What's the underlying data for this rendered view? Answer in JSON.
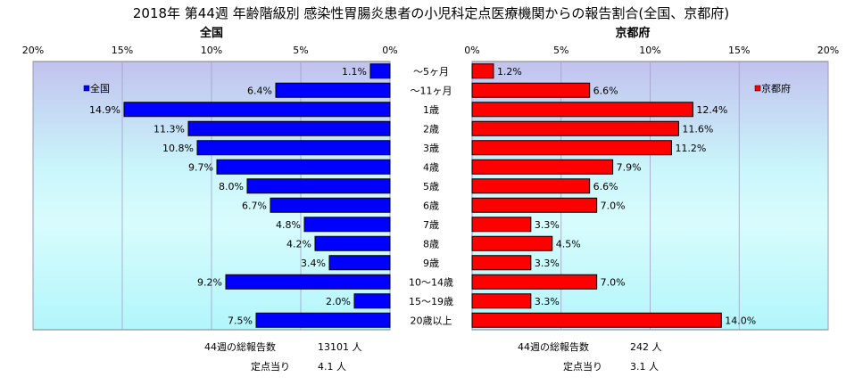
{
  "title": "2018年 第44週 年齢階級別 感染性胃腸炎患者の小児科定点医療機関からの報告割合(全国、京都府)",
  "categories": [
    "～5ヶ月",
    "～11ヶ月",
    "1歳",
    "2歳",
    "3歳",
    "4歳",
    "5歳",
    "6歳",
    "7歳",
    "8歳",
    "9歳",
    "10～14歳",
    "15～19歳",
    "20歳以上"
  ],
  "chart_data": [
    {
      "type": "bar",
      "orientation": "horizontal",
      "direction": "leftward",
      "title": "全国",
      "xlim": [
        0,
        20
      ],
      "ticks": [
        "20%",
        "15%",
        "10%",
        "5%",
        "0%"
      ],
      "tick_values": [
        20,
        15,
        10,
        5,
        0
      ],
      "series": [
        {
          "name": "全国",
          "color": "#0000ff",
          "values": [
            1.1,
            6.4,
            14.9,
            11.3,
            10.8,
            9.7,
            8.0,
            6.7,
            4.8,
            4.2,
            3.4,
            9.2,
            2.0,
            7.5
          ],
          "labels": [
            "1.1%",
            "6.4%",
            "14.9%",
            "11.3%",
            "10.8%",
            "9.7%",
            "8.0%",
            "6.7%",
            "4.8%",
            "4.2%",
            "3.4%",
            "9.2%",
            "2.0%",
            "7.5%"
          ]
        }
      ],
      "legend": "top-left",
      "grid": true
    },
    {
      "type": "bar",
      "orientation": "horizontal",
      "direction": "rightward",
      "title": "京都府",
      "xlim": [
        0,
        20
      ],
      "ticks": [
        "0%",
        "5%",
        "10%",
        "15%",
        "20%"
      ],
      "tick_values": [
        0,
        5,
        10,
        15,
        20
      ],
      "series": [
        {
          "name": "京都府",
          "color": "#ff0000",
          "values": [
            1.2,
            6.6,
            12.4,
            11.6,
            11.2,
            7.9,
            6.6,
            7.0,
            3.3,
            4.5,
            3.3,
            7.0,
            3.3,
            14.0
          ],
          "labels": [
            "1.2%",
            "6.6%",
            "12.4%",
            "11.6%",
            "11.2%",
            "7.9%",
            "6.6%",
            "7.0%",
            "3.3%",
            "4.5%",
            "3.3%",
            "7.0%",
            "3.3%",
            "14.0%"
          ]
        }
      ],
      "legend": "top-right",
      "grid": true
    }
  ],
  "notes": {
    "national": {
      "total_label": "44週の総報告数",
      "total_value": "13101 人",
      "per_label": "定点当り",
      "per_value": "4.1 人"
    },
    "kyoto": {
      "total_label": "44週の総報告数",
      "total_value": "242 人",
      "per_label": "定点当り",
      "per_value": "3.1 人"
    }
  }
}
